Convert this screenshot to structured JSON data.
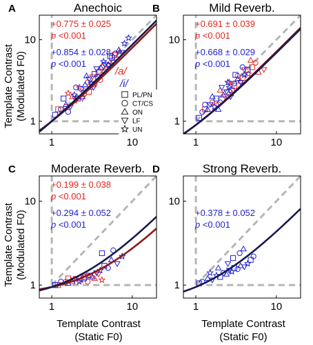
{
  "figure": {
    "y_label_line1": "Template Contrast",
    "y_label_line2": "(Modulated F0)",
    "x_label_line1": "Template Contrast",
    "x_label_line2": "(Static F0)",
    "vowel_a_label": "/a/",
    "vowel_i_label": "/i/",
    "legend": [
      {
        "symbol": "square",
        "label": "PL/PN"
      },
      {
        "symbol": "circle",
        "label": "CT/CS"
      },
      {
        "symbol": "triangle-up",
        "label": "ON"
      },
      {
        "symbol": "triangle-down",
        "label": "LF"
      },
      {
        "symbol": "star",
        "label": "UN"
      }
    ]
  },
  "colors": {
    "vowel_a": "#e8231e",
    "vowel_i": "#1f1fd6",
    "fit_a": "#8b1a1a",
    "fit_i": "#15194f",
    "reference": "#b5b5b5"
  },
  "chart_data": [
    {
      "type": "scatter",
      "panel_letter": "A",
      "title": "Anechoic",
      "xscale": "log",
      "yscale": "log",
      "xlim": [
        0.7,
        20
      ],
      "ylim": [
        0.7,
        20
      ],
      "xticks": [
        1,
        10
      ],
      "yticks": [
        1,
        10
      ],
      "series": [
        {
          "name": "/a/",
          "slope_text": "+0.775 ± 0.025",
          "p_text": "<0.001",
          "fit_slope": 0.775,
          "fit_intercept": 1.0,
          "points": [
            [
              1.2,
              1.4
            ],
            [
              1.5,
              1.5
            ],
            [
              1.8,
              2.0
            ],
            [
              2.0,
              1.8
            ],
            [
              2.2,
              2.6
            ],
            [
              2.5,
              2.2
            ],
            [
              2.8,
              3.0
            ],
            [
              3.0,
              2.6
            ],
            [
              3.2,
              3.5
            ],
            [
              3.5,
              3.0
            ],
            [
              3.8,
              4.0
            ],
            [
              4.0,
              3.2
            ],
            [
              4.5,
              4.2
            ],
            [
              5.0,
              4.8
            ],
            [
              5.5,
              5.0
            ],
            [
              6.0,
              6.5
            ],
            [
              6.5,
              5.8
            ],
            [
              7.0,
              7.2
            ],
            [
              2.4,
              1.9
            ],
            [
              1.6,
              2.2
            ],
            [
              2.9,
              2.3
            ],
            [
              4.2,
              4.6
            ],
            [
              3.3,
              2.8
            ],
            [
              5.8,
              5.3
            ]
          ]
        },
        {
          "name": "/i/",
          "slope_text": "+0.854 ± 0.028",
          "p_text": "<0.001",
          "fit_slope": 0.854,
          "fit_intercept": 1.0,
          "points": [
            [
              1.1,
              1.2
            ],
            [
              1.3,
              1.4
            ],
            [
              1.5,
              1.6
            ],
            [
              1.7,
              1.5
            ],
            [
              1.9,
              2.1
            ],
            [
              2.1,
              1.9
            ],
            [
              2.3,
              2.5
            ],
            [
              2.6,
              2.8
            ],
            [
              2.9,
              3.3
            ],
            [
              3.1,
              2.9
            ],
            [
              3.4,
              3.8
            ],
            [
              3.7,
              3.5
            ],
            [
              4.1,
              4.5
            ],
            [
              4.6,
              5.0
            ],
            [
              5.1,
              4.9
            ],
            [
              5.6,
              6.0
            ],
            [
              6.2,
              6.8
            ],
            [
              6.8,
              7.5
            ],
            [
              7.4,
              7.0
            ],
            [
              8.0,
              9.0
            ],
            [
              1.4,
              1.9
            ],
            [
              2.0,
              2.6
            ],
            [
              2.7,
              3.6
            ],
            [
              3.6,
              4.4
            ],
            [
              4.4,
              5.4
            ],
            [
              5.3,
              6.3
            ],
            [
              1.6,
              1.3
            ],
            [
              2.4,
              2.0
            ],
            [
              3.3,
              2.6
            ],
            [
              9.0,
              10.5
            ]
          ]
        }
      ]
    },
    {
      "type": "scatter",
      "panel_letter": "B",
      "title": "Mild Reverb.",
      "xscale": "log",
      "yscale": "log",
      "xlim": [
        0.7,
        20
      ],
      "ylim": [
        0.7,
        20
      ],
      "xticks": [
        1,
        10
      ],
      "yticks": [
        1,
        10
      ],
      "series": [
        {
          "name": "/a/",
          "slope_text": "+0.691 ± 0.039",
          "p_text": "<0.001",
          "fit_slope": 0.691,
          "fit_intercept": 0.9,
          "points": [
            [
              1.3,
              1.4
            ],
            [
              1.6,
              1.7
            ],
            [
              2.0,
              2.4
            ],
            [
              2.3,
              2.0
            ],
            [
              2.6,
              3.0
            ],
            [
              3.0,
              2.7
            ],
            [
              3.3,
              3.6
            ],
            [
              3.6,
              3.1
            ],
            [
              4.0,
              4.3
            ],
            [
              4.5,
              3.8
            ],
            [
              5.0,
              4.6
            ],
            [
              5.5,
              5.2
            ],
            [
              6.0,
              4.0
            ],
            [
              7.0,
              4.3
            ],
            [
              2.8,
              2.2
            ],
            [
              3.8,
              3.4
            ],
            [
              1.9,
              1.6
            ],
            [
              4.8,
              5.6
            ]
          ]
        },
        {
          "name": "/i/",
          "slope_text": "+0.668 ± 0.029",
          "p_text": "<0.001",
          "fit_slope": 0.668,
          "fit_intercept": 0.9,
          "points": [
            [
              1.1,
              1.1
            ],
            [
              1.2,
              1.3
            ],
            [
              1.4,
              1.4
            ],
            [
              1.5,
              1.6
            ],
            [
              1.7,
              1.5
            ],
            [
              1.8,
              1.9
            ],
            [
              2.0,
              1.7
            ],
            [
              2.2,
              2.1
            ],
            [
              2.4,
              2.3
            ],
            [
              2.6,
              2.6
            ],
            [
              2.8,
              2.4
            ],
            [
              3.0,
              2.9
            ],
            [
              3.3,
              3.3
            ],
            [
              3.6,
              3.0
            ],
            [
              4.0,
              3.7
            ],
            [
              4.4,
              4.3
            ],
            [
              1.3,
              1.6
            ],
            [
              1.6,
              2.0
            ],
            [
              2.1,
              2.6
            ],
            [
              2.5,
              3.0
            ],
            [
              3.1,
              3.7
            ],
            [
              3.8,
              4.6
            ],
            [
              1.9,
              1.4
            ],
            [
              2.7,
              2.0
            ]
          ]
        }
      ]
    },
    {
      "type": "scatter",
      "panel_letter": "C",
      "title": "Moderate Reverb.",
      "xscale": "log",
      "yscale": "log",
      "xlim": [
        0.7,
        20
      ],
      "ylim": [
        0.7,
        20
      ],
      "xticks": [
        1,
        10
      ],
      "yticks": [
        1,
        10
      ],
      "series": [
        {
          "name": "/a/",
          "slope_text": "+0.199 ± 0.038",
          "p_text": "<0.001",
          "fit_slope": 0.199,
          "fit_intercept": 0.95,
          "points": [
            [
              1.2,
              1.0
            ],
            [
              1.5,
              1.1
            ],
            [
              1.8,
              1.1
            ],
            [
              2.0,
              1.2
            ],
            [
              2.3,
              1.15
            ],
            [
              2.6,
              1.25
            ],
            [
              3.0,
              1.3
            ],
            [
              3.4,
              1.2
            ],
            [
              3.8,
              1.35
            ],
            [
              4.2,
              1.15
            ],
            [
              1.6,
              1.2
            ],
            [
              2.8,
              1.1
            ]
          ]
        },
        {
          "name": "/i/",
          "slope_text": "+0.294 ± 0.052",
          "p_text": "<0.001",
          "fit_slope": 0.294,
          "fit_intercept": 0.95,
          "points": [
            [
              1.1,
              1.0
            ],
            [
              1.3,
              1.1
            ],
            [
              1.6,
              1.05
            ],
            [
              1.9,
              1.15
            ],
            [
              2.2,
              1.1
            ],
            [
              2.5,
              1.2
            ],
            [
              2.8,
              1.3
            ],
            [
              3.2,
              1.25
            ],
            [
              3.6,
              1.4
            ],
            [
              4.0,
              1.5
            ],
            [
              4.5,
              1.7
            ],
            [
              5.0,
              1.6
            ],
            [
              5.5,
              2.0
            ],
            [
              6.5,
              1.8
            ],
            [
              7.5,
              2.2
            ],
            [
              4.2,
              2.4
            ],
            [
              5.8,
              2.6
            ]
          ]
        }
      ]
    },
    {
      "type": "scatter",
      "panel_letter": "D",
      "title": "Strong Reverb.",
      "xscale": "log",
      "yscale": "log",
      "xlim": [
        0.7,
        20
      ],
      "ylim": [
        0.7,
        20
      ],
      "xticks": [
        1,
        10
      ],
      "yticks": [
        1,
        10
      ],
      "series": [
        {
          "name": "/i/",
          "slope_text": "+0.378 ± 0.052",
          "p_text": "<0.001",
          "fit_slope": 0.378,
          "fit_intercept": 0.95,
          "points": [
            [
              1.1,
              1.05
            ],
            [
              1.2,
              1.1
            ],
            [
              1.4,
              1.2
            ],
            [
              1.6,
              1.15
            ],
            [
              1.8,
              1.3
            ],
            [
              2.0,
              1.25
            ],
            [
              2.2,
              1.4
            ],
            [
              2.4,
              1.35
            ],
            [
              2.6,
              1.5
            ],
            [
              2.8,
              1.45
            ],
            [
              3.0,
              1.6
            ],
            [
              3.3,
              1.55
            ],
            [
              3.6,
              1.7
            ],
            [
              4.0,
              1.65
            ],
            [
              4.4,
              1.8
            ],
            [
              4.8,
              2.0
            ],
            [
              3.5,
              2.4
            ],
            [
              3.9,
              2.7
            ],
            [
              2.5,
              1.8
            ],
            [
              1.5,
              1.4
            ],
            [
              2.9,
              2.1
            ],
            [
              5.2,
              2.2
            ],
            [
              1.9,
              1.6
            ]
          ]
        }
      ]
    }
  ]
}
